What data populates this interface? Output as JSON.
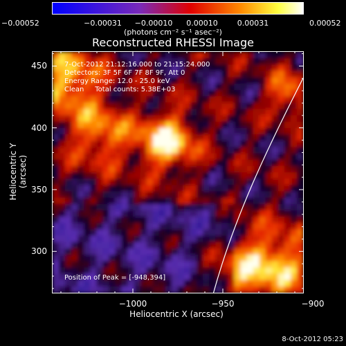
{
  "chart_data": {
    "type": "heatmap",
    "title": "Reconstructed RHESSI Image",
    "xlabel": "Heliocentric X (arcsec)",
    "ylabel": "Heliocentric Y (arcsec)",
    "xlim": [
      -1045,
      -905
    ],
    "ylim": [
      266,
      462
    ],
    "x_ticks": [
      -1000,
      -950,
      -900
    ],
    "x_tick_labels": [
      "−1000",
      "−950",
      "−900"
    ],
    "y_ticks": [
      300,
      350,
      400,
      450
    ],
    "y_tick_labels": [
      "300",
      "350",
      "400",
      "450"
    ],
    "colorbar": {
      "range": [
        -0.00052,
        0.00052
      ],
      "ticks": [
        -0.00052,
        -0.00031,
        -0.0001,
        0.0001,
        0.00031,
        0.00052
      ],
      "tick_labels": [
        "−0.00052",
        "−0.00031",
        "−0.00010",
        "0.00010",
        "0.00031",
        "0.00052"
      ],
      "unit_label": "(photons cm⁻² s⁻¹ asec⁻²)",
      "colors": [
        "#0000ff",
        "#7a2ab8",
        "#e00000",
        "#ff8a00",
        "#ffff40",
        "#ffffff"
      ]
    },
    "info_lines": [
      "7-Oct-2012 21:12:16.000 to 21:15:24.000",
      "Detectors: 3F 5F 6F 7F 8F 9F, Att 0",
      "Energy Range: 12.0 - 25.0 keV",
      "Clean     Total counts: 5.38E+03"
    ],
    "peak_text": "Position of Peak = [-948,394]",
    "limb_line_color": "#ffffff"
  },
  "timestamp": "8-Oct-2012 05:23"
}
